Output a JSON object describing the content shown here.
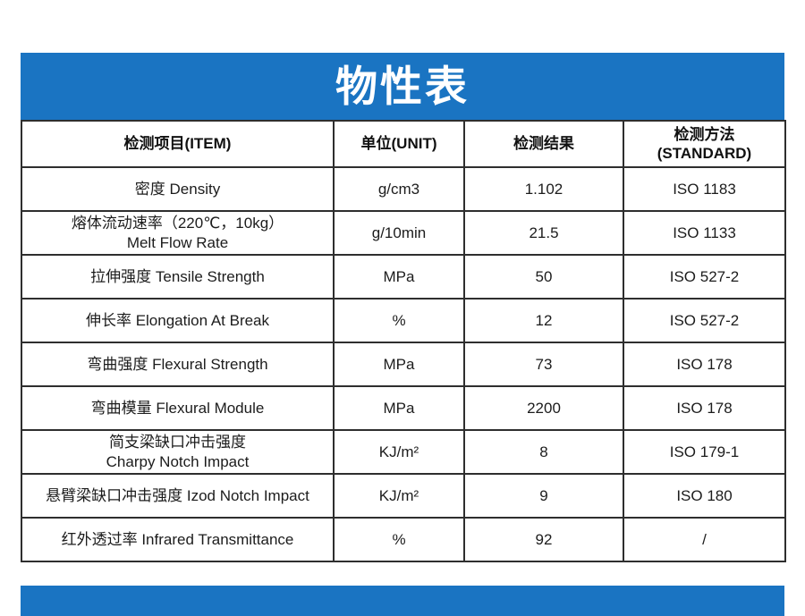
{
  "page": {
    "background_color": "#ffffff"
  },
  "banner": {
    "title": "物性表",
    "background_color": "#1a74c2",
    "text_color": "#ffffff"
  },
  "bottom_banner": {
    "background_color": "#1a74c2"
  },
  "table": {
    "border_color": "#2e2e2e",
    "headers": {
      "item": "检测项目(ITEM)",
      "unit": "单位(UNIT)",
      "result": "检测结果",
      "standard": "检测方法\n(STANDARD)"
    },
    "rows": [
      {
        "item": "密度 Density",
        "unit": "g/cm3",
        "result": "1.102",
        "standard": "ISO 1183"
      },
      {
        "item": "熔体流动速率（220℃，10kg）\nMelt Flow  Rate",
        "unit": "g/10min",
        "result": "21.5",
        "standard": "ISO 1133"
      },
      {
        "item": "拉伸强度 Tensile Strength",
        "unit": "MPa",
        "result": "50",
        "standard": "ISO 527-2"
      },
      {
        "item": "伸长率 Elongation At Break",
        "unit": "%",
        "result": "12",
        "standard": "ISO 527-2"
      },
      {
        "item": "弯曲强度 Flexural Strength",
        "unit": "MPa",
        "result": "73",
        "standard": "ISO 178"
      },
      {
        "item": "弯曲模量 Flexural Module",
        "unit": "MPa",
        "result": "2200",
        "standard": "ISO 178"
      },
      {
        "item": "简支梁缺口冲击强度\nCharpy Notch Impact",
        "unit": "KJ/m²",
        "result": "8",
        "standard": "ISO 179-1"
      },
      {
        "item": "悬臂梁缺口冲击强度 Izod Notch Impact",
        "unit": "KJ/m²",
        "result": "9",
        "standard": "ISO 180"
      },
      {
        "item": "红外透过率 Infrared Transmittance",
        "unit": "%",
        "result": "92",
        "standard": "/"
      }
    ]
  }
}
